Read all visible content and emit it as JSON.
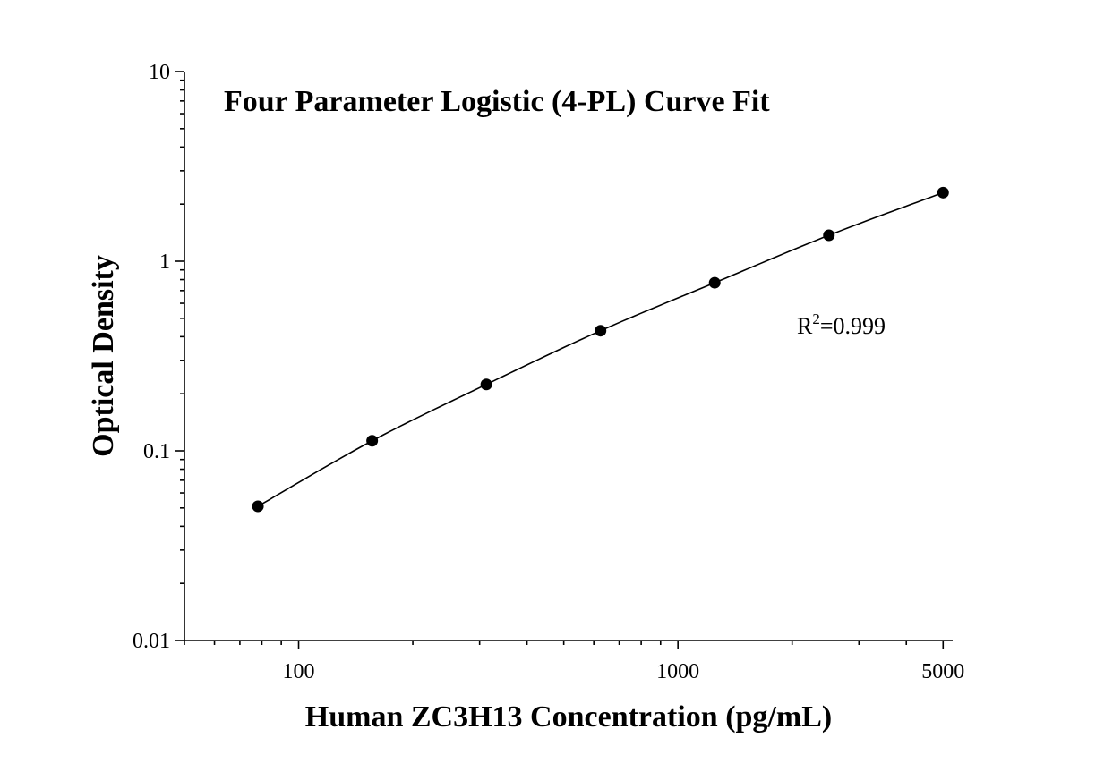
{
  "chart_data": {
    "type": "scatter",
    "title": "Four Parameter Logistic (4-PL) Curve Fit",
    "xlabel": "Human ZC3H13 Concentration (pg/mL)",
    "ylabel": "Optical Density",
    "x_scale": "log",
    "y_scale": "log",
    "xlim": [
      50,
      5300
    ],
    "ylim": [
      0.01,
      10
    ],
    "x_ticks": [
      {
        "value": 100,
        "label": "100"
      },
      {
        "value": 1000,
        "label": "1000"
      },
      {
        "value": 5000,
        "label": "5000"
      }
    ],
    "y_ticks": [
      {
        "value": 0.01,
        "label": "0.01"
      },
      {
        "value": 0.1,
        "label": "0.1"
      },
      {
        "value": 1,
        "label": "1"
      },
      {
        "value": 10,
        "label": "10"
      }
    ],
    "grid": false,
    "series": [
      {
        "points": [
          {
            "x": 78.1,
            "y": 0.051
          },
          {
            "x": 156.25,
            "y": 0.113
          },
          {
            "x": 312.5,
            "y": 0.224
          },
          {
            "x": 625,
            "y": 0.43
          },
          {
            "x": 1250,
            "y": 0.77
          },
          {
            "x": 2500,
            "y": 1.37
          },
          {
            "x": 5000,
            "y": 2.3
          }
        ],
        "fit": "4-PL",
        "color": "#000000"
      }
    ],
    "annotation": {
      "r_label": "R",
      "r_sup": "2",
      "r_value": "=0.999"
    }
  }
}
